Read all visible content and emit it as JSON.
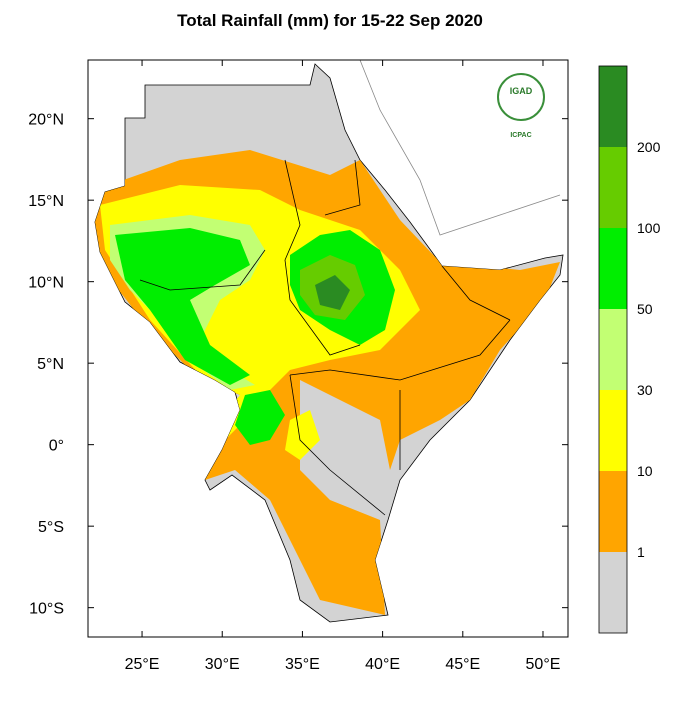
{
  "map": {
    "title": "Total Rainfall (mm) for 15-22 Sep 2020",
    "lon_range": [
      21.63,
      51.56
    ],
    "lat_range": [
      -11.8,
      23.6
    ],
    "lon_ticks": [
      {
        "value": 25,
        "label": "25°E"
      },
      {
        "value": 30,
        "label": "30°E"
      },
      {
        "value": 35,
        "label": "35°E"
      },
      {
        "value": 40,
        "label": "40°E"
      },
      {
        "value": 45,
        "label": "45°E"
      },
      {
        "value": 50,
        "label": "50°E"
      }
    ],
    "lat_ticks": [
      {
        "value": 20,
        "label": "20°N"
      },
      {
        "value": 15,
        "label": "15°N"
      },
      {
        "value": 10,
        "label": "10°N"
      },
      {
        "value": 5,
        "label": "5°N"
      },
      {
        "value": 0,
        "label": "0°"
      },
      {
        "value": -5,
        "label": "5°S"
      },
      {
        "value": -10,
        "label": "10°S"
      }
    ],
    "logo": {
      "name": "IGAD",
      "org": "ICPAC"
    },
    "colorbar": {
      "levels": [
        1,
        10,
        30,
        50,
        100,
        200
      ],
      "colors": [
        "#d3d3d3",
        "#ffa500",
        "#ffff00",
        "#c2ff73",
        "#00ee00",
        "#66cc00",
        "#2a8b22"
      ]
    }
  }
}
